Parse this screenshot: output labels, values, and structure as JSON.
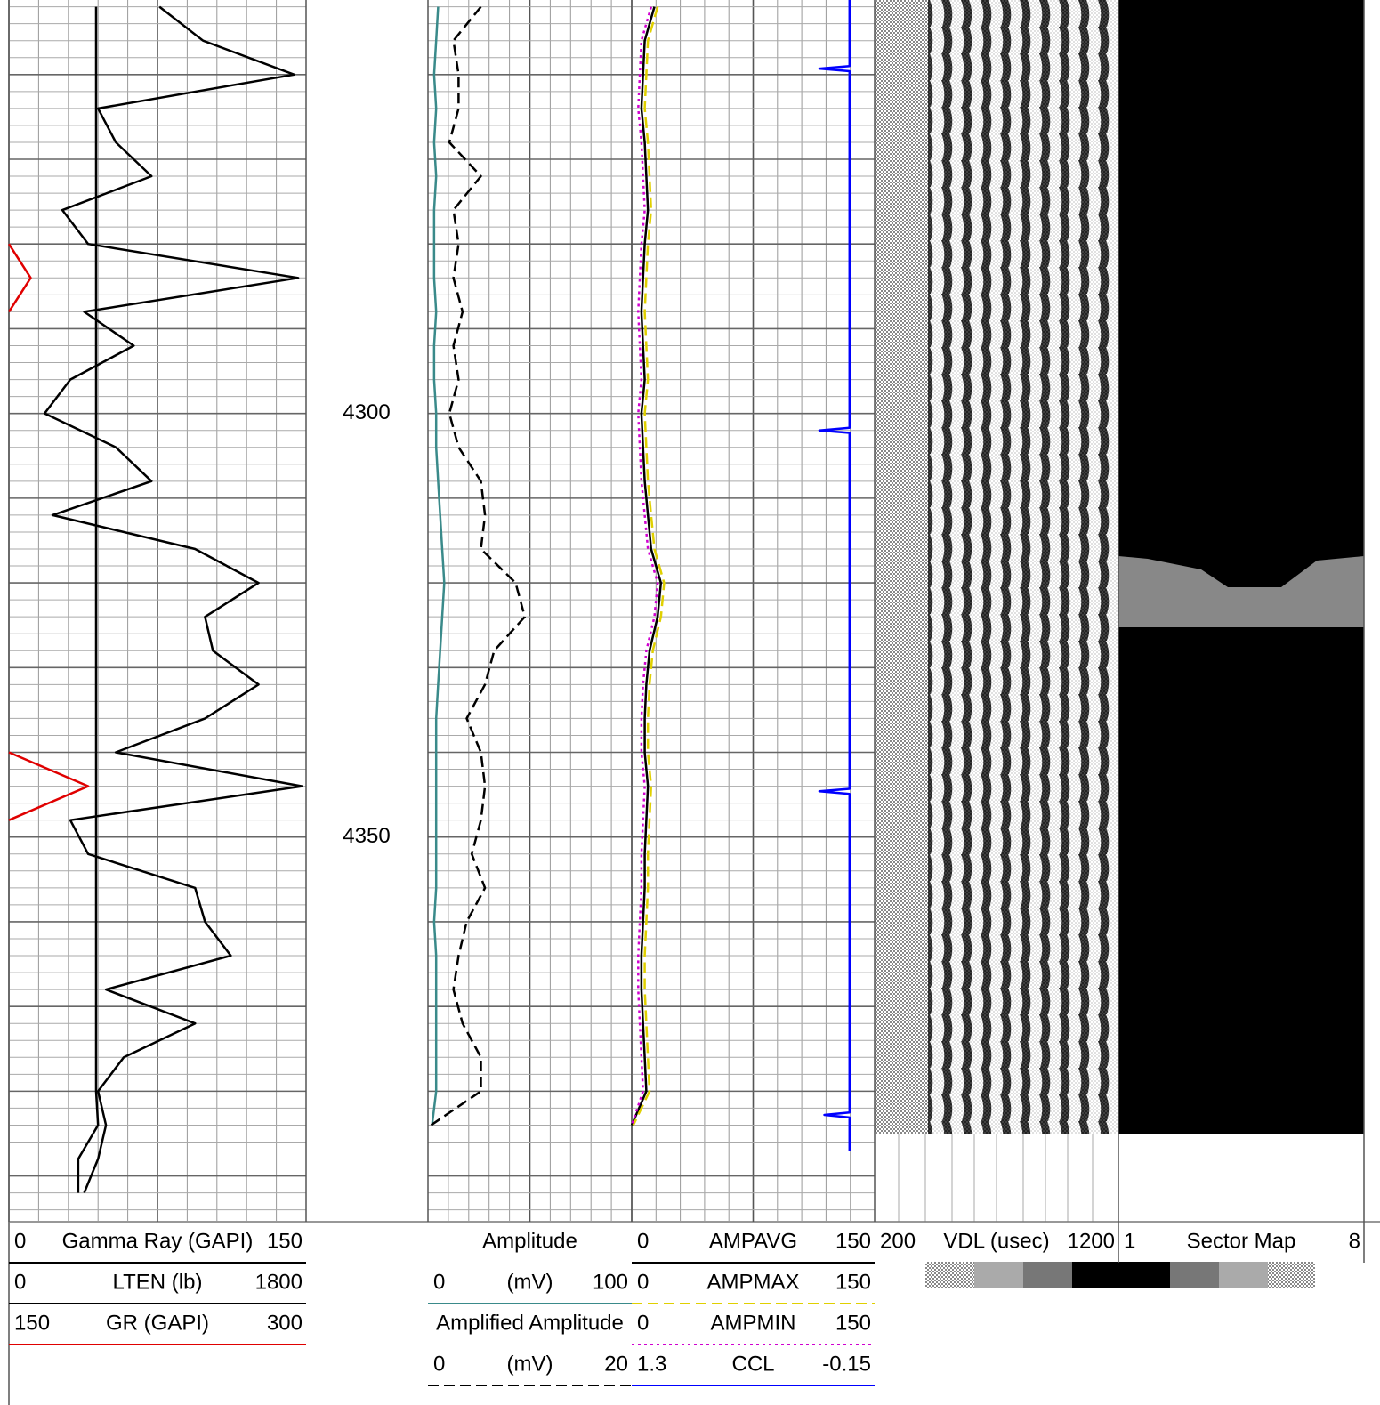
{
  "chart_data": [
    {
      "type": "line",
      "ylim": [
        4251.2,
        4395.4
      ],
      "yticks": [
        4300,
        4350
      ],
      "depth": [
        4252,
        4256,
        4260,
        4264,
        4268,
        4272,
        4276,
        4280,
        4284,
        4288,
        4292,
        4296,
        4300,
        4304,
        4308,
        4312,
        4316,
        4320,
        4324,
        4328,
        4332,
        4336,
        4340,
        4344,
        4348,
        4352,
        4356,
        4360,
        4364,
        4368,
        4372,
        4376,
        4380,
        4384,
        4388,
        4392
      ],
      "series": [
        {
          "name": "Gamma Ray (GAPI)",
          "color": "#000000",
          "dash": "solid",
          "xlim": [
            0,
            150
          ],
          "values": [
            76,
            98,
            144,
            45,
            54,
            72,
            27,
            40,
            146,
            38,
            63,
            31,
            18,
            54,
            72,
            22,
            94,
            126,
            99,
            103,
            126,
            99,
            54,
            148,
            31,
            40,
            94,
            99,
            112,
            49,
            94,
            58,
            45,
            49,
            45,
            38
          ]
        },
        {
          "name": "LTEN (lb)",
          "color": "#000000",
          "dash": "solid",
          "xlim": [
            0,
            1800
          ],
          "values": [
            528,
            528,
            528,
            528,
            528,
            528,
            528,
            528,
            528,
            528,
            528,
            528,
            528,
            528,
            528,
            528,
            528,
            528,
            528,
            528,
            528,
            528,
            528,
            528,
            528,
            528,
            528,
            528,
            528,
            528,
            528,
            528,
            528,
            540,
            420,
            420
          ]
        },
        {
          "name": "GR (GAPI)",
          "color": "#e00000",
          "dash": "solid",
          "xlim": [
            150,
            300
          ],
          "values": [
            null,
            null,
            null,
            null,
            null,
            null,
            null,
            150,
            161,
            150,
            null,
            null,
            null,
            null,
            null,
            null,
            null,
            null,
            null,
            null,
            null,
            null,
            150,
            190,
            150,
            null,
            null,
            null,
            null,
            null,
            null,
            null,
            null,
            null,
            null,
            null
          ]
        }
      ]
    },
    {
      "type": "line",
      "ylim": [
        4251.2,
        4395.4
      ],
      "depth": [
        4252,
        4256,
        4260,
        4264,
        4268,
        4272,
        4276,
        4280,
        4284,
        4288,
        4292,
        4296,
        4300,
        4304,
        4308,
        4312,
        4316,
        4320,
        4324,
        4328,
        4332,
        4336,
        4340,
        4344,
        4348,
        4352,
        4356,
        4360,
        4364,
        4368,
        4372,
        4376,
        4380,
        4384,
        4388,
        4392
      ],
      "series": [
        {
          "name": "Amplitude",
          "unit": "(mV)",
          "color": "#3a8a8a",
          "dash": "solid",
          "xlim": [
            0,
            100
          ],
          "values": [
            5,
            4,
            3,
            4,
            3,
            4,
            3,
            3,
            3,
            4,
            3,
            3,
            4,
            4,
            5,
            6,
            7,
            8,
            7,
            6,
            5,
            4,
            4,
            4,
            4,
            4,
            4,
            3,
            4,
            4,
            4,
            4,
            4,
            2,
            null,
            null
          ]
        },
        {
          "name": "Amplified Amplitude",
          "unit": "(mV)",
          "color": "#000000",
          "dash": "dashed",
          "xlim": [
            0,
            20
          ],
          "values": [
            5.2,
            2.5,
            3,
            3,
            2.1,
            5.2,
            2.5,
            3,
            2.5,
            3.4,
            2.5,
            3,
            2.1,
            3,
            5.2,
            5.6,
            5.2,
            8.6,
            9.5,
            6.5,
            5.6,
            3.8,
            5.2,
            5.6,
            5.2,
            4.3,
            5.6,
            3.8,
            3,
            2.5,
            3.4,
            5.2,
            5.2,
            0.3,
            null,
            null
          ]
        }
      ]
    },
    {
      "type": "line",
      "ylim": [
        4251.2,
        4395.4
      ],
      "depth": [
        4252,
        4256,
        4260,
        4264,
        4268,
        4272,
        4276,
        4280,
        4284,
        4288,
        4292,
        4296,
        4300,
        4304,
        4308,
        4312,
        4316,
        4320,
        4324,
        4328,
        4332,
        4336,
        4340,
        4344,
        4348,
        4352,
        4356,
        4360,
        4364,
        4368,
        4372,
        4376,
        4380,
        4384,
        4388,
        4392
      ],
      "series": [
        {
          "name": "AMPAVG",
          "color": "#000000",
          "dash": "solid",
          "xlim": [
            0,
            150
          ],
          "values": [
            14,
            8,
            7,
            6,
            8,
            9,
            10,
            8,
            7,
            6,
            7,
            8,
            6,
            7,
            8,
            10,
            12,
            18,
            16,
            11,
            9,
            8,
            8,
            10,
            9,
            8,
            8,
            7,
            6,
            6,
            7,
            8,
            9,
            0,
            null,
            null
          ]
        },
        {
          "name": "AMPMAX",
          "color": "#e0d000",
          "dash": "dashed",
          "xlim": [
            0,
            150
          ],
          "values": [
            16,
            10,
            9,
            8,
            10,
            11,
            12,
            10,
            9,
            8,
            9,
            10,
            8,
            9,
            10,
            12,
            14,
            20,
            18,
            13,
            11,
            10,
            10,
            12,
            11,
            10,
            10,
            9,
            8,
            8,
            9,
            10,
            11,
            1,
            null,
            null
          ]
        },
        {
          "name": "AMPMIN",
          "color": "#d000d0",
          "dash": "dotted",
          "xlim": [
            0,
            150
          ],
          "values": [
            12,
            6,
            5,
            4,
            6,
            7,
            8,
            6,
            5,
            4,
            5,
            6,
            4,
            5,
            6,
            8,
            10,
            16,
            14,
            9,
            7,
            6,
            6,
            8,
            7,
            6,
            6,
            5,
            4,
            4,
            5,
            6,
            7,
            0,
            null,
            null
          ]
        },
        {
          "name": "CCL",
          "color": "#0000ff",
          "dash": "solid",
          "xlim": [
            1.3,
            -0.15
          ],
          "depth": [
            4251.2,
            4259,
            4259.3,
            4259.6,
            4301.7,
            4302,
            4302.3,
            4344.3,
            4344.6,
            4344.9,
            4382.5,
            4382.8,
            4383.1,
            4387
          ],
          "values": [
            0,
            0,
            0.18,
            0,
            0,
            0.18,
            0,
            0,
            0.18,
            0,
            0,
            0.15,
            0,
            0
          ]
        }
      ]
    },
    {
      "type": "image",
      "name": "VDL (usec)",
      "xlim": [
        200,
        1200
      ]
    },
    {
      "type": "image",
      "name": "Sector Map",
      "xlim": [
        1,
        8
      ]
    }
  ]
}
